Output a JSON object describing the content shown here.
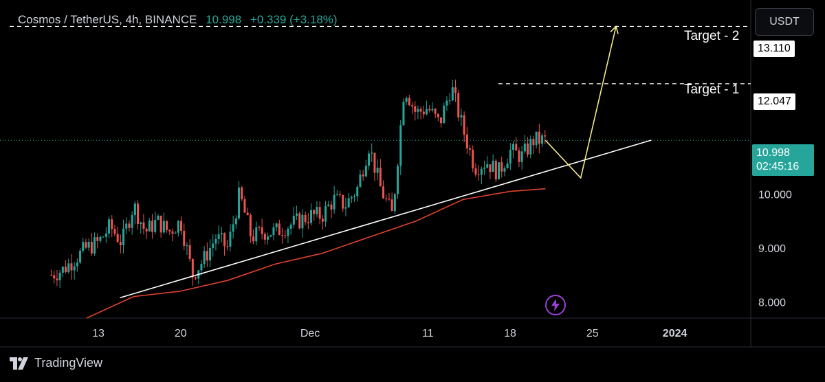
{
  "header": {
    "symbol": "Cosmos / TetherUS, 4h, BINANCE",
    "price": "10.998",
    "change": "+0.339 (+3.18%)"
  },
  "currency_button": "USDT",
  "brand": "TradingView",
  "annotations": {
    "target2_label": "Target - 2",
    "target1_label": "Target - 1",
    "target2_price": "13.110",
    "target1_price": "12.047",
    "current_price": "10.998",
    "countdown": "02:45:16"
  },
  "colors": {
    "up": "#26a69a",
    "down": "#ef5350",
    "ma": "#e0432b",
    "projection": "#f3e98a",
    "trendline": "#ffffff"
  },
  "chart_data": {
    "type": "candlestick",
    "title": "Cosmos / TetherUS, 4h, BINANCE",
    "x_ticks": [
      "13",
      "20",
      "Dec",
      "11",
      "18",
      "25",
      "2024"
    ],
    "x_tick_dates": [
      "2023-11-13",
      "2023-11-20",
      "2023-12-01",
      "2023-12-11",
      "2023-12-18",
      "2023-12-25",
      "2024-01-01"
    ],
    "y_ticks": [
      "8.000",
      "9.000",
      "10.000"
    ],
    "ylim": [
      7.7,
      13.6
    ],
    "series": [
      {
        "name": "close",
        "x": [
          "2023-11-09",
          "2023-11-10",
          "2023-11-11",
          "2023-11-12",
          "2023-11-13",
          "2023-11-14",
          "2023-11-15",
          "2023-11-16",
          "2023-11-17",
          "2023-11-18",
          "2023-11-19",
          "2023-11-20",
          "2023-11-21",
          "2023-11-22",
          "2023-11-23",
          "2023-11-24",
          "2023-11-25",
          "2023-11-26",
          "2023-11-27",
          "2023-11-28",
          "2023-11-29",
          "2023-11-30",
          "2023-12-01",
          "2023-12-02",
          "2023-12-03",
          "2023-12-04",
          "2023-12-05",
          "2023-12-06",
          "2023-12-07",
          "2023-12-08",
          "2023-12-09",
          "2023-12-10",
          "2023-12-11",
          "2023-12-12",
          "2023-12-13",
          "2023-12-14",
          "2023-12-15",
          "2023-12-16",
          "2023-12-17",
          "2023-12-18",
          "2023-12-19",
          "2023-12-20",
          "2023-12-21"
        ],
        "values": [
          8.5,
          8.6,
          8.8,
          9.0,
          9.1,
          9.4,
          9.1,
          9.8,
          9.3,
          9.5,
          9.3,
          9.5,
          8.5,
          8.8,
          9.2,
          9.0,
          10.0,
          9.2,
          9.3,
          9.3,
          9.4,
          9.5,
          9.6,
          9.6,
          9.9,
          9.8,
          10.1,
          10.9,
          10.1,
          9.6,
          12.0,
          11.5,
          11.6,
          11.3,
          12.0,
          11.2,
          10.5,
          10.6,
          10.4,
          10.8,
          10.7,
          11.0,
          10.998
        ]
      },
      {
        "name": "MA",
        "x": [
          "2023-11-12",
          "2023-11-16",
          "2023-11-20",
          "2023-11-24",
          "2023-11-28",
          "2023-12-02",
          "2023-12-06",
          "2023-12-10",
          "2023-12-14",
          "2023-12-18",
          "2023-12-21"
        ],
        "values": [
          7.7,
          8.1,
          8.2,
          8.4,
          8.7,
          8.9,
          9.2,
          9.5,
          9.9,
          10.05,
          10.1
        ]
      }
    ],
    "trendline": {
      "x": [
        "2023-11-09",
        "2023-12-30"
      ],
      "y": [
        7.7,
        11.0
      ]
    },
    "projection": {
      "x": [
        "2023-12-21",
        "2023-12-24",
        "2023-12-27"
      ],
      "y": [
        10.998,
        10.3,
        13.11
      ]
    },
    "levels": [
      13.11,
      12.047,
      10.998
    ]
  }
}
